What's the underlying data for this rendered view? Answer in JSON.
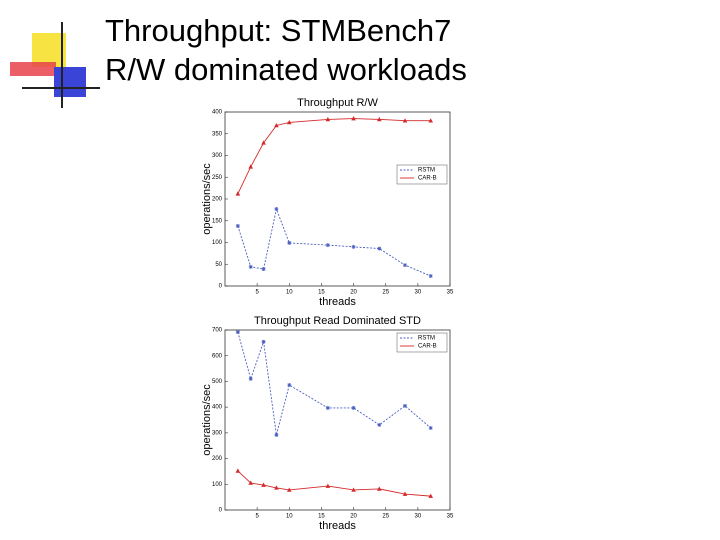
{
  "slide": {
    "title_lines": [
      "Throughput: STMBench7",
      "R/W dominated workloads"
    ]
  },
  "chart_data": [
    {
      "type": "line",
      "title": "Throughput R/W",
      "x_label": "threads",
      "y_label": "operations/sec",
      "x": [
        2,
        4,
        6,
        8,
        10,
        16,
        20,
        24,
        28,
        32
      ],
      "series": [
        {
          "name": "RSTM",
          "color": "#4a5fc1",
          "marker": "star",
          "dash": true,
          "values": [
            138,
            44,
            39,
            177,
            99,
            94,
            90,
            86,
            48,
            23
          ]
        },
        {
          "name": "CAR-B",
          "color": "#d42a2a",
          "marker": "triangle",
          "dash": false,
          "values": [
            212,
            274,
            329,
            369,
            376,
            383,
            385,
            383,
            380,
            380
          ]
        }
      ],
      "xlim": [
        0,
        35
      ],
      "xticks": [
        5,
        10,
        15,
        20,
        25,
        30,
        35
      ],
      "ylim": [
        0,
        400
      ],
      "yticks": [
        0,
        50,
        100,
        150,
        200,
        250,
        300,
        350,
        400
      ],
      "legend": "right"
    },
    {
      "type": "line",
      "title": "Throughput Read Dominated STD",
      "x_label": "threads",
      "y_label": "operations/sec",
      "x": [
        2,
        4,
        6,
        8,
        10,
        16,
        20,
        24,
        28,
        32
      ],
      "series": [
        {
          "name": "RSTM",
          "color": "#4a5fc1",
          "marker": "star",
          "dash": true,
          "values": [
            692,
            510,
            654,
            292,
            486,
            397,
            397,
            331,
            405,
            319
          ]
        },
        {
          "name": "CAR-B",
          "color": "#d42a2a",
          "marker": "triangle",
          "dash": false,
          "values": [
            152,
            105,
            97,
            86,
            78,
            93,
            78,
            82,
            62,
            54
          ]
        }
      ],
      "xlim": [
        0,
        35
      ],
      "xticks": [
        5,
        10,
        15,
        20,
        25,
        30,
        35
      ],
      "ylim": [
        0,
        700
      ],
      "yticks": [
        0,
        100,
        200,
        300,
        400,
        500,
        600,
        700
      ],
      "legend": "top-right"
    }
  ]
}
